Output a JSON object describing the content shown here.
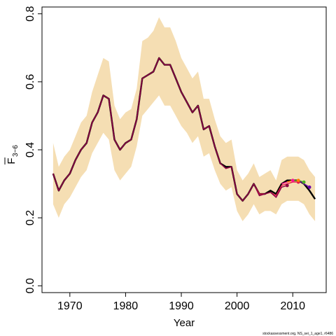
{
  "chart_data": {
    "type": "line",
    "xlabel": "Year",
    "ylabel_main": "F",
    "ylabel_sub": "3−6",
    "xlim": [
      1965,
      2016
    ],
    "ylim": [
      -0.02,
      0.82
    ],
    "x_ticks": [
      1970,
      1980,
      1990,
      2000,
      2010
    ],
    "x_tick_labels": [
      "1970",
      "1980",
      "1990",
      "2000",
      "2010"
    ],
    "y_ticks": [
      0.0,
      0.2,
      0.4,
      0.6,
      0.8
    ],
    "y_tick_labels": [
      "0.0",
      "0.2",
      "0.4",
      "0.6",
      "0.8"
    ],
    "band": {
      "color": "#f5deb3",
      "x": [
        1967,
        1968,
        1969,
        1970,
        1971,
        1972,
        1973,
        1974,
        1975,
        1976,
        1977,
        1978,
        1979,
        1980,
        1981,
        1982,
        1983,
        1984,
        1985,
        1986,
        1987,
        1988,
        1989,
        1990,
        1991,
        1992,
        1993,
        1994,
        1995,
        1996,
        1997,
        1998,
        1999,
        2000,
        2001,
        2002,
        2003,
        2004,
        2005,
        2006,
        2007,
        2008,
        2009,
        2010,
        2011,
        2012,
        2013,
        2014
      ],
      "upper": [
        0.42,
        0.35,
        0.38,
        0.4,
        0.44,
        0.48,
        0.5,
        0.57,
        0.62,
        0.67,
        0.66,
        0.53,
        0.49,
        0.51,
        0.52,
        0.58,
        0.72,
        0.73,
        0.75,
        0.79,
        0.76,
        0.76,
        0.72,
        0.67,
        0.64,
        0.61,
        0.63,
        0.55,
        0.55,
        0.49,
        0.44,
        0.42,
        0.43,
        0.34,
        0.31,
        0.33,
        0.36,
        0.32,
        0.33,
        0.34,
        0.31,
        0.37,
        0.38,
        0.38,
        0.38,
        0.37,
        0.34,
        0.32
      ],
      "lower": [
        0.24,
        0.2,
        0.24,
        0.26,
        0.29,
        0.32,
        0.34,
        0.39,
        0.42,
        0.45,
        0.43,
        0.34,
        0.31,
        0.33,
        0.35,
        0.41,
        0.5,
        0.52,
        0.54,
        0.56,
        0.53,
        0.53,
        0.5,
        0.47,
        0.45,
        0.42,
        0.44,
        0.38,
        0.39,
        0.34,
        0.3,
        0.28,
        0.29,
        0.22,
        0.19,
        0.21,
        0.24,
        0.21,
        0.22,
        0.22,
        0.21,
        0.24,
        0.25,
        0.25,
        0.25,
        0.24,
        0.21,
        0.19
      ]
    },
    "series": [
      {
        "color": "#000000",
        "x": [
          1967,
          1968,
          1969,
          1970,
          1971,
          1972,
          1973,
          1974,
          1975,
          1976,
          1977,
          1978,
          1979,
          1980,
          1981,
          1982,
          1983,
          1984,
          1985,
          1986,
          1987,
          1988,
          1989,
          1990,
          1991,
          1992,
          1993,
          1994,
          1995,
          1996,
          1997,
          1998,
          1999,
          2000,
          2001,
          2002,
          2003,
          2004,
          2005,
          2006,
          2007,
          2008,
          2009,
          2010,
          2011,
          2012,
          2013,
          2014
        ],
        "values": [
          0.33,
          0.28,
          0.31,
          0.33,
          0.37,
          0.4,
          0.42,
          0.48,
          0.51,
          0.56,
          0.55,
          0.43,
          0.4,
          0.42,
          0.43,
          0.49,
          0.61,
          0.62,
          0.63,
          0.67,
          0.65,
          0.65,
          0.61,
          0.57,
          0.54,
          0.51,
          0.53,
          0.46,
          0.47,
          0.41,
          0.36,
          0.35,
          0.35,
          0.27,
          0.25,
          0.27,
          0.3,
          0.27,
          0.27,
          0.28,
          0.27,
          0.3,
          0.31,
          0.31,
          0.31,
          0.3,
          0.28,
          0.255
        ]
      },
      {
        "color": "#e6194b",
        "x": [
          1967,
          1968,
          1969,
          1970,
          1971,
          1972,
          1973,
          1974,
          1975,
          1976,
          1977,
          1978,
          1979,
          1980,
          1981,
          1982,
          1983,
          1984,
          1985,
          1986,
          1987,
          1988,
          1989,
          1990,
          1991,
          1992,
          1993,
          1994,
          1995,
          1996,
          1997,
          1998,
          1999,
          2000,
          2001,
          2002,
          2003,
          2004,
          2005,
          2006,
          2007,
          2008,
          2009,
          2010,
          2011
        ],
        "values": [
          0.33,
          0.28,
          0.31,
          0.33,
          0.37,
          0.4,
          0.42,
          0.48,
          0.51,
          0.56,
          0.55,
          0.43,
          0.4,
          0.42,
          0.43,
          0.49,
          0.61,
          0.62,
          0.63,
          0.67,
          0.65,
          0.65,
          0.61,
          0.57,
          0.54,
          0.51,
          0.53,
          0.46,
          0.47,
          0.41,
          0.36,
          0.345,
          0.35,
          0.27,
          0.25,
          0.27,
          0.3,
          0.27,
          0.27,
          0.275,
          0.265,
          0.295,
          0.3,
          0.305,
          0.305
        ],
        "end_point": true
      },
      {
        "color": "#8b0046",
        "x": [
          1967,
          1968,
          1969,
          1970,
          1971,
          1972,
          1973,
          1974,
          1975,
          1976,
          1977,
          1978,
          1979,
          1980,
          1981,
          1982,
          1983,
          1984,
          1985,
          1986,
          1987,
          1988,
          1989,
          1990,
          1991,
          1992,
          1993,
          1994,
          1995,
          1996,
          1997,
          1998,
          1999,
          2000,
          2001,
          2002,
          2003,
          2004,
          2005,
          2006,
          2007,
          2008,
          2009
        ],
        "values": [
          0.33,
          0.28,
          0.31,
          0.33,
          0.37,
          0.4,
          0.42,
          0.48,
          0.51,
          0.56,
          0.55,
          0.43,
          0.4,
          0.42,
          0.43,
          0.49,
          0.61,
          0.62,
          0.63,
          0.67,
          0.65,
          0.65,
          0.61,
          0.57,
          0.54,
          0.51,
          0.53,
          0.46,
          0.47,
          0.41,
          0.36,
          0.345,
          0.35,
          0.27,
          0.25,
          0.27,
          0.3,
          0.265,
          0.27,
          0.275,
          0.26,
          0.29,
          0.295
        ],
        "end_point": true
      },
      {
        "color": "#ff1493",
        "x": [
          2008,
          2009,
          2010
        ],
        "values": [
          0.3,
          0.305,
          0.31
        ],
        "end_point": true
      },
      {
        "color": "#ff7f00",
        "x": [
          2009,
          2010,
          2011
        ],
        "values": [
          0.305,
          0.31,
          0.31
        ],
        "end_point": true
      },
      {
        "color": "#4caf20",
        "x": [
          2010,
          2011,
          2012
        ],
        "values": [
          0.31,
          0.31,
          0.305
        ],
        "end_point": true
      },
      {
        "color": "#6a00a8",
        "x": [
          2011,
          2012,
          2013
        ],
        "values": [
          0.31,
          0.3,
          0.29
        ],
        "end_point": true
      }
    ],
    "footnote": "stockassessment.org, NS_sei_1_age1, r6486"
  }
}
